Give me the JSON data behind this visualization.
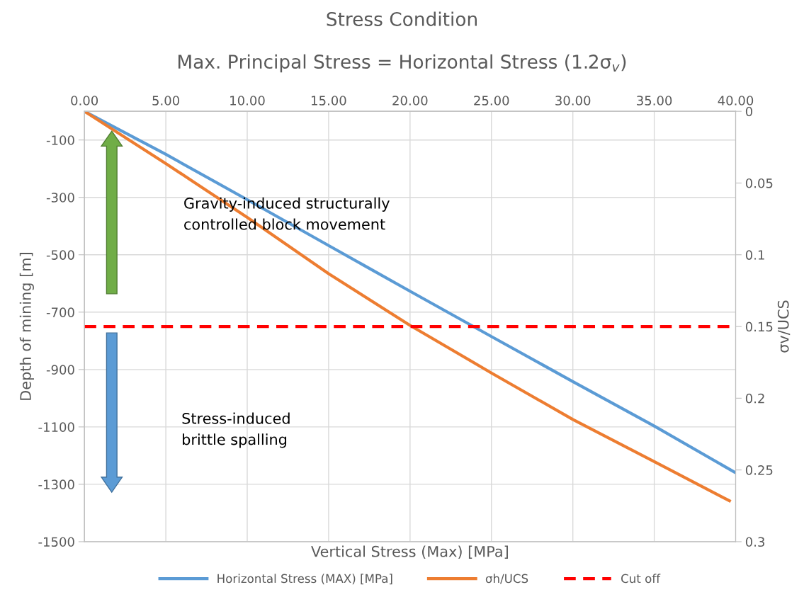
{
  "chart_data": {
    "type": "line",
    "title": "Stress Condition",
    "subtitle": "Max. Principal Stress = Horizontal Stress (1.2σ$_{v}$)",
    "xlabel": "Vertical Stress (Max) [MPa]",
    "ylabel": "Depth of mining [m]",
    "y2label": "σv/UCS",
    "series": [
      {
        "name": "Horizontal Stress (MAX) [MPa]",
        "color": "#5b9bd5",
        "x": [
          0,
          5,
          10,
          15,
          20,
          25,
          30,
          35,
          40
        ],
        "values": [
          0,
          -150,
          -308,
          -468,
          -627,
          -785,
          -942,
          -1097,
          -1260
        ]
      },
      {
        "name": "σh/UCS",
        "color": "#ed7d31",
        "x": [
          0,
          5,
          10,
          15,
          20,
          25,
          30,
          35,
          39.7
        ],
        "values": [
          0,
          -182,
          -370,
          -566,
          -746,
          -912,
          -1074,
          -1221,
          -1360
        ]
      },
      {
        "name": "Cut off",
        "color": "#ff0000",
        "x": [
          0,
          40
        ],
        "values": [
          0.15,
          0.15
        ],
        "axis": "y2",
        "line_style": "dashed"
      }
    ],
    "xlim": [
      0,
      40
    ],
    "xticks": [
      {
        "value": 0,
        "label": "0.00"
      },
      {
        "value": 5,
        "label": "5.00"
      },
      {
        "value": 10,
        "label": "10.00"
      },
      {
        "value": 15,
        "label": "15.00"
      },
      {
        "value": 20,
        "label": "20.00"
      },
      {
        "value": 25,
        "label": "25.00"
      },
      {
        "value": 30,
        "label": "30.00"
      },
      {
        "value": 35,
        "label": "35.00"
      },
      {
        "value": 40,
        "label": "40.00"
      }
    ],
    "ylim": [
      -1500,
      0
    ],
    "yticks": [
      -1500,
      -1300,
      -1100,
      -900,
      -700,
      -500,
      -300,
      -100
    ],
    "y2lim": [
      0.3,
      0
    ],
    "y2ticks": [
      0,
      0.05,
      0.1,
      0.15,
      0.2,
      0.25,
      0.3
    ],
    "annotations": [
      "Gravity-induced structurally\ncontrolled block movement",
      "Stress-induced\nbrittle spalling"
    ],
    "grid": true,
    "legend": "bottom",
    "line_style": "solid",
    "marker": "none"
  }
}
